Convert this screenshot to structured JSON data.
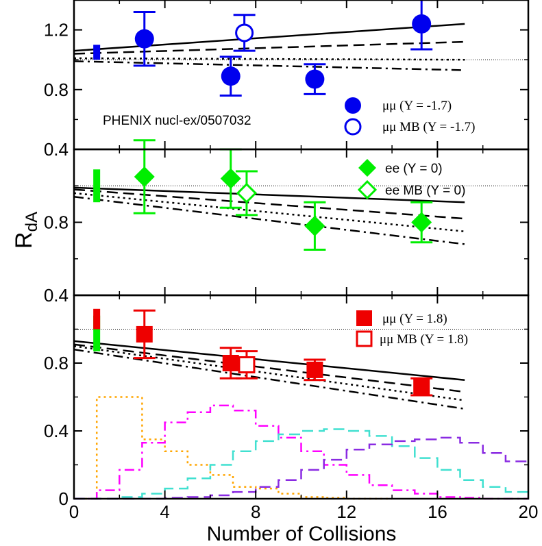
{
  "chart_data": {
    "type": "scatter",
    "xlabel": "Number of Collisions",
    "ylabel_main": "R",
    "ylabel_sub": "dA",
    "xlim": [
      0,
      20
    ],
    "x_ticks": [
      {
        "v": 0,
        "label": "0"
      },
      {
        "v": 4,
        "label": "4"
      },
      {
        "v": 8,
        "label": "8"
      },
      {
        "v": 12,
        "label": "12"
      },
      {
        "v": 16,
        "label": "16"
      },
      {
        "v": 20,
        "label": "20"
      }
    ],
    "panels": [
      {
        "id": "top",
        "ylim": [
          0.4,
          1.4
        ],
        "y_ticks": [
          {
            "v": 0.4,
            "label": "0.4"
          },
          {
            "v": 0.8,
            "label": "0.8"
          },
          {
            "v": 1.2,
            "label": "1.2"
          }
        ],
        "reference_line": 1.0,
        "annotation": "PHENIX nucl-ex/0507032",
        "sys_bars": [
          {
            "x": 1.0,
            "low": 1.0,
            "high": 1.1,
            "color": "#0000ee"
          }
        ],
        "series": [
          {
            "name": "μμ (Y = -1.7)",
            "marker": "circle",
            "filled": true,
            "color": "#0000ee",
            "points": [
              {
                "x": 3.1,
                "y": 1.14,
                "err": 0.18
              },
              {
                "x": 6.9,
                "y": 0.89,
                "err": 0.13
              },
              {
                "x": 10.6,
                "y": 0.87,
                "err": 0.1
              },
              {
                "x": 15.3,
                "y": 1.24,
                "err": 0.17
              }
            ]
          },
          {
            "name": "μμ MB (Y = -1.7)",
            "marker": "circle",
            "filled": false,
            "color": "#0000ee",
            "points": [
              {
                "x": 7.5,
                "y": 1.18,
                "err": 0.12
              }
            ]
          }
        ],
        "curves": [
          {
            "style": "solid",
            "x": [
              0,
              17.2
            ],
            "y": [
              1.06,
              1.24
            ]
          },
          {
            "style": "dashed",
            "x": [
              0,
              17.2
            ],
            "y": [
              1.04,
              1.12
            ]
          },
          {
            "style": "dotted",
            "x": [
              0,
              17.2
            ],
            "y": [
              1.01,
              1.0
            ]
          },
          {
            "style": "dashdot",
            "x": [
              0,
              17.2
            ],
            "y": [
              0.99,
              0.93
            ]
          }
        ]
      },
      {
        "id": "middle",
        "ylim": [
          0.4,
          1.2
        ],
        "y_ticks": [
          {
            "v": 0.4,
            "label": "0.4"
          },
          {
            "v": 0.8,
            "label": "0.8"
          }
        ],
        "reference_line": 1.0,
        "sys_bars": [
          {
            "x": 1.0,
            "low": 0.91,
            "high": 1.09,
            "color": "#00ee00"
          }
        ],
        "series": [
          {
            "name": "ee (Y = 0)",
            "marker": "diamond",
            "filled": true,
            "color": "#00ee00",
            "points": [
              {
                "x": 3.1,
                "y": 1.05,
                "err": 0.2
              },
              {
                "x": 6.9,
                "y": 1.04,
                "err": 0.16
              },
              {
                "x": 10.6,
                "y": 0.78,
                "err": 0.13
              },
              {
                "x": 15.3,
                "y": 0.8,
                "err": 0.11
              }
            ]
          },
          {
            "name": "ee MB (Y = 0)",
            "marker": "diamond",
            "filled": false,
            "color": "#00ee00",
            "points": [
              {
                "x": 7.6,
                "y": 0.96,
                "err": 0.12
              }
            ]
          }
        ],
        "curves": [
          {
            "style": "solid",
            "x": [
              0,
              17.2
            ],
            "y": [
              0.99,
              0.91
            ]
          },
          {
            "style": "dashed",
            "x": [
              0,
              17.2
            ],
            "y": [
              0.98,
              0.82
            ]
          },
          {
            "style": "dotted",
            "x": [
              0,
              17.2
            ],
            "y": [
              0.96,
              0.75
            ]
          },
          {
            "style": "dashdot",
            "x": [
              0,
              17.2
            ],
            "y": [
              0.94,
              0.68
            ]
          }
        ]
      },
      {
        "id": "bottom",
        "ylim": [
          0,
          1.2
        ],
        "y_ticks": [
          {
            "v": 0,
            "label": "0"
          },
          {
            "v": 0.4,
            "label": "0.4"
          },
          {
            "v": 0.8,
            "label": "0.8"
          }
        ],
        "reference_line": 1.0,
        "sys_bars": [
          {
            "x": 1.0,
            "low": 0.87,
            "high": 1.08,
            "color": "#00ee00"
          },
          {
            "x": 1.0,
            "low": 1.0,
            "high": 1.12,
            "color": "#ee0000"
          }
        ],
        "series": [
          {
            "name": "μμ (Y = 1.8)",
            "marker": "square",
            "filled": true,
            "color": "#ee0000",
            "points": [
              {
                "x": 3.1,
                "y": 0.97,
                "err": 0.14
              },
              {
                "x": 6.9,
                "y": 0.8,
                "err": 0.09
              },
              {
                "x": 10.6,
                "y": 0.76,
                "err": 0.06
              },
              {
                "x": 15.3,
                "y": 0.66,
                "err": 0.05
              }
            ]
          },
          {
            "name": " μμ MB (Y = 1.8)",
            "marker": "square",
            "filled": false,
            "color": "#ee0000",
            "points": [
              {
                "x": 7.6,
                "y": 0.79,
                "err": 0.08
              }
            ]
          }
        ],
        "curves": [
          {
            "style": "solid",
            "x": [
              0,
              17.2
            ],
            "y": [
              0.93,
              0.7
            ]
          },
          {
            "style": "dashed",
            "x": [
              0,
              17.2
            ],
            "y": [
              0.91,
              0.63
            ]
          },
          {
            "style": "dotted",
            "x": [
              0,
              17.2
            ],
            "y": [
              0.9,
              0.58
            ]
          },
          {
            "style": "dashdot",
            "x": [
              0,
              17.2
            ],
            "y": [
              0.88,
              0.53
            ]
          }
        ],
        "histograms": [
          {
            "color": "#ffa500",
            "style": "dotted",
            "x0": 0,
            "step": 1,
            "values": [
              0,
              0.6,
              0.6,
              0.35,
              0.28,
              0.2,
              0.14,
              0.07,
              0.06,
              0.03,
              0.01,
              0.005,
              0,
              0
            ]
          },
          {
            "color": "#ff00ff",
            "style": "dashdot",
            "x0": 0,
            "step": 1,
            "values": [
              0,
              0.05,
              0.17,
              0.33,
              0.45,
              0.51,
              0.55,
              0.52,
              0.43,
              0.36,
              0.28,
              0.2,
              0.14,
              0.08,
              0.05,
              0.03,
              0.01,
              0.005,
              0,
              0
            ]
          },
          {
            "color": "#40e0d0",
            "style": "dashed",
            "x0": 0,
            "step": 1,
            "values": [
              0,
              0,
              0.01,
              0.03,
              0.06,
              0.12,
              0.2,
              0.28,
              0.34,
              0.38,
              0.4,
              0.41,
              0.4,
              0.37,
              0.31,
              0.24,
              0.17,
              0.11,
              0.07,
              0.04
            ]
          },
          {
            "color": "#8a2be2",
            "style": "dashed",
            "x0": 0,
            "step": 1,
            "values": [
              0,
              0,
              0,
              0,
              0.005,
              0.01,
              0.02,
              0.04,
              0.07,
              0.11,
              0.17,
              0.23,
              0.29,
              0.32,
              0.34,
              0.35,
              0.36,
              0.33,
              0.27,
              0.22
            ]
          }
        ]
      }
    ]
  }
}
